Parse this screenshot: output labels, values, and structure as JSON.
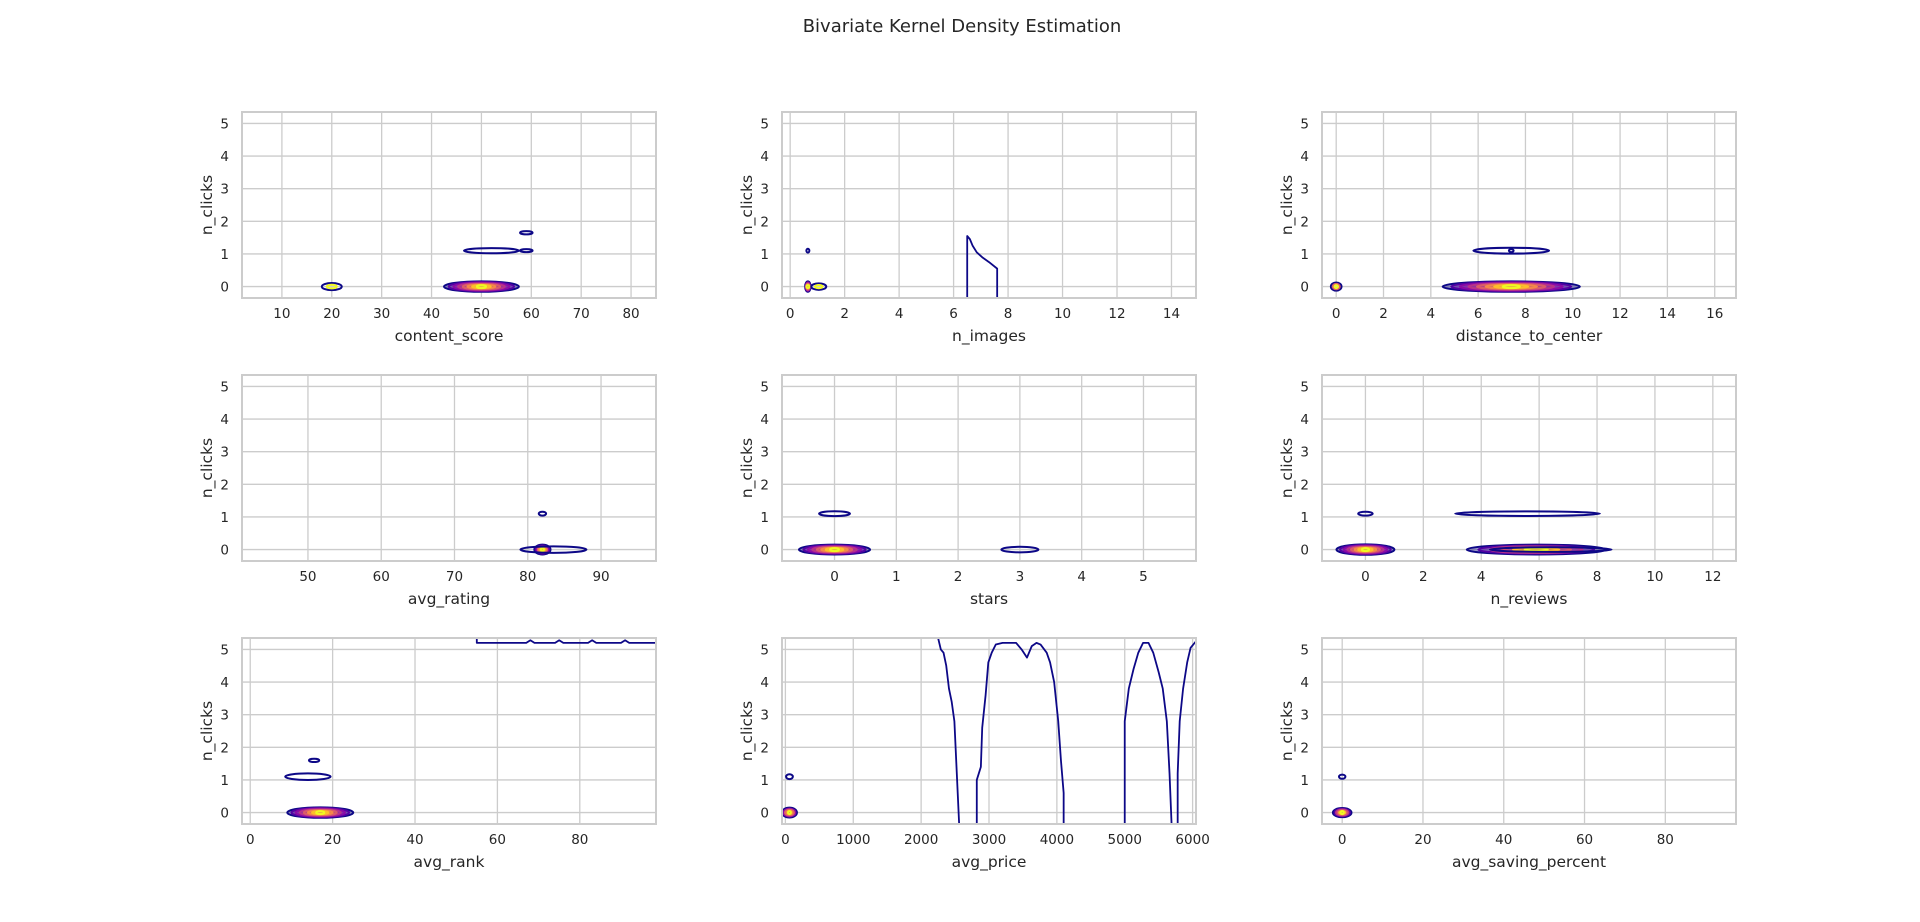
{
  "title": "Bivariate Kernel Density Estimation",
  "colors": {
    "ramp": [
      "#0d0887",
      "#5302a3",
      "#8b0aa5",
      "#b83289",
      "#db5c68",
      "#f48849",
      "#febd2a",
      "#f0f921"
    ],
    "grid": "#cccccc",
    "text": "#262626"
  },
  "chart_data": [
    {
      "type": "kde",
      "xlabel": "content_score",
      "ylabel": "n_clicks",
      "xlim": [
        2,
        85
      ],
      "ylim": [
        -0.35,
        5.35
      ],
      "xticks": [
        10,
        20,
        30,
        40,
        50,
        60,
        70,
        80
      ],
      "yticks": [
        0,
        1,
        2,
        3,
        4,
        5
      ],
      "blobs": [
        {
          "x": 20,
          "y": 0,
          "sx": 4,
          "sy": 0.22,
          "levels": 2
        },
        {
          "x": 50,
          "y": 0,
          "sx": 15,
          "sy": 0.32,
          "levels": 8
        },
        {
          "x": 52,
          "y": 1.1,
          "sx": 11,
          "sy": 0.16,
          "levels": 1
        },
        {
          "x": 59,
          "y": 1.1,
          "sx": 2.5,
          "sy": 0.08,
          "levels": 1
        },
        {
          "x": 59,
          "y": 1.65,
          "sx": 2.5,
          "sy": 0.1,
          "levels": 1
        }
      ],
      "lines": []
    },
    {
      "type": "kde",
      "xlabel": "n_images",
      "ylabel": "n_clicks",
      "xlim": [
        -0.3,
        14.9
      ],
      "ylim": [
        -0.35,
        5.35
      ],
      "xticks": [
        0,
        2,
        4,
        6,
        8,
        10,
        12,
        14
      ],
      "yticks": [
        0,
        1,
        2,
        3,
        4,
        5
      ],
      "blobs": [
        {
          "x": 0.65,
          "y": 0,
          "sx": 0.2,
          "sy": 0.32,
          "levels": 5
        },
        {
          "x": 1.05,
          "y": 0,
          "sx": 0.55,
          "sy": 0.2,
          "levels": 2
        },
        {
          "x": 0.65,
          "y": 1.1,
          "sx": 0.06,
          "sy": 0.12,
          "levels": 1
        }
      ],
      "lines": [
        {
          "points": [
            [
              6.5,
              -0.35
            ],
            [
              6.5,
              1.55
            ],
            [
              6.6,
              1.45
            ],
            [
              6.7,
              1.25
            ],
            [
              6.85,
              1.05
            ],
            [
              7.05,
              0.9
            ],
            [
              7.3,
              0.75
            ],
            [
              7.6,
              0.55
            ],
            [
              7.6,
              -0.35
            ]
          ]
        }
      ]
    },
    {
      "type": "kde",
      "xlabel": "distance_to_center",
      "ylabel": "n_clicks",
      "xlim": [
        -0.6,
        16.9
      ],
      "ylim": [
        -0.35,
        5.35
      ],
      "xticks": [
        0,
        2,
        4,
        6,
        8,
        10,
        12,
        14,
        16
      ],
      "yticks": [
        0,
        1,
        2,
        3,
        4,
        5
      ],
      "blobs": [
        {
          "x": 0,
          "y": 0,
          "sx": 0.45,
          "sy": 0.25,
          "levels": 3
        },
        {
          "x": 7.4,
          "y": 0,
          "sx": 5.8,
          "sy": 0.32,
          "levels": 8
        },
        {
          "x": 7.4,
          "y": 1.1,
          "sx": 3.2,
          "sy": 0.18,
          "levels": 1
        },
        {
          "x": 7.4,
          "y": 1.1,
          "sx": 0.2,
          "sy": 0.06,
          "levels": 1
        }
      ],
      "lines": []
    },
    {
      "type": "kde",
      "xlabel": "avg_rating",
      "ylabel": "n_clicks",
      "xlim": [
        41,
        97.5
      ],
      "ylim": [
        -0.35,
        5.35
      ],
      "xticks": [
        50,
        60,
        70,
        80,
        90
      ],
      "yticks": [
        0,
        1,
        2,
        3,
        4,
        5
      ],
      "blobs": [
        {
          "x": 82,
          "y": 0,
          "sx": 2.2,
          "sy": 0.3,
          "levels": 7
        },
        {
          "x": 83.5,
          "y": 0,
          "sx": 9,
          "sy": 0.2,
          "levels": 1
        },
        {
          "x": 82,
          "y": 1.1,
          "sx": 1,
          "sy": 0.12,
          "levels": 1
        }
      ],
      "lines": []
    },
    {
      "type": "kde",
      "xlabel": "stars",
      "ylabel": "n_clicks",
      "xlim": [
        -0.85,
        5.85
      ],
      "ylim": [
        -0.35,
        5.35
      ],
      "xticks": [
        0,
        1,
        2,
        3,
        4,
        5
      ],
      "yticks": [
        0,
        1,
        2,
        3,
        4,
        5
      ],
      "blobs": [
        {
          "x": 0,
          "y": 0,
          "sx": 1.15,
          "sy": 0.3,
          "levels": 8
        },
        {
          "x": 0,
          "y": 1.1,
          "sx": 0.5,
          "sy": 0.15,
          "levels": 1
        },
        {
          "x": 3,
          "y": 0,
          "sx": 0.6,
          "sy": 0.17,
          "levels": 1
        }
      ],
      "lines": []
    },
    {
      "type": "kde",
      "xlabel": "n_reviews",
      "ylabel": "n_clicks",
      "xlim": [
        -1.5,
        12.8
      ],
      "ylim": [
        -0.35,
        5.35
      ],
      "xticks": [
        0,
        2,
        4,
        6,
        8,
        10,
        12
      ],
      "yticks": [
        0,
        1,
        2,
        3,
        4,
        5
      ],
      "blobs": [
        {
          "x": 0,
          "y": 0,
          "sx": 2,
          "sy": 0.32,
          "levels": 8
        },
        {
          "x": 0,
          "y": 1.1,
          "sx": 0.5,
          "sy": 0.12,
          "levels": 1
        },
        {
          "x": 5.9,
          "y": 0,
          "sx": 4.8,
          "sy": 0.3,
          "levels": 6
        },
        {
          "x": 6.4,
          "y": 0,
          "sx": 4.2,
          "sy": 0.14,
          "levels": 1
        },
        {
          "x": 5.6,
          "y": 1.1,
          "sx": 5,
          "sy": 0.14,
          "levels": 1
        }
      ],
      "lines": []
    },
    {
      "type": "kde",
      "xlabel": "avg_rank",
      "ylabel": "n_clicks",
      "xlim": [
        -2,
        98.5
      ],
      "ylim": [
        -0.35,
        5.35
      ],
      "xticks": [
        0,
        20,
        40,
        60,
        80
      ],
      "yticks": [
        0,
        1,
        2,
        3,
        4,
        5
      ],
      "blobs": [
        {
          "x": 17,
          "y": 0,
          "sx": 16,
          "sy": 0.32,
          "levels": 8
        },
        {
          "x": 14,
          "y": 1.1,
          "sx": 11,
          "sy": 0.2,
          "levels": 1
        },
        {
          "x": 15.5,
          "y": 1.6,
          "sx": 2.5,
          "sy": 0.1,
          "levels": 1
        }
      ],
      "lines": [
        {
          "points": [
            [
              55,
              5.35
            ],
            [
              55,
              5.2
            ],
            [
              67,
              5.2
            ],
            [
              68,
              5.28
            ],
            [
              69,
              5.2
            ],
            [
              74,
              5.2
            ],
            [
              75,
              5.28
            ],
            [
              76,
              5.2
            ],
            [
              82,
              5.2
            ],
            [
              83,
              5.28
            ],
            [
              84,
              5.2
            ],
            [
              90,
              5.2
            ],
            [
              91,
              5.28
            ],
            [
              92,
              5.2
            ],
            [
              98.5,
              5.2
            ]
          ]
        }
      ]
    },
    {
      "type": "kde",
      "xlabel": "avg_price",
      "ylabel": "n_clicks",
      "xlim": [
        -50,
        6050
      ],
      "ylim": [
        -0.35,
        5.35
      ],
      "xticks": [
        0,
        1000,
        2000,
        3000,
        4000,
        5000,
        6000
      ],
      "yticks": [
        0,
        1,
        2,
        3,
        4,
        5
      ],
      "blobs": [
        {
          "x": 60,
          "y": 0,
          "sx": 220,
          "sy": 0.3,
          "levels": 5
        },
        {
          "x": 60,
          "y": 1.1,
          "sx": 100,
          "sy": 0.15,
          "levels": 1
        }
      ],
      "lines": [
        {
          "points": [
            [
              2250,
              5.35
            ],
            [
              2290,
              5.0
            ],
            [
              2330,
              4.9
            ],
            [
              2370,
              4.5
            ],
            [
              2410,
              3.8
            ],
            [
              2450,
              3.4
            ],
            [
              2490,
              2.8
            ],
            [
              2530,
              1.0
            ],
            [
              2560,
              -0.35
            ]
          ]
        },
        {
          "points": [
            [
              2820,
              -0.35
            ],
            [
              2820,
              1.0
            ],
            [
              2880,
              1.4
            ],
            [
              2900,
              2.6
            ],
            [
              2950,
              3.6
            ],
            [
              2990,
              4.6
            ],
            [
              3040,
              4.9
            ],
            [
              3100,
              5.15
            ],
            [
              3200,
              5.2
            ],
            [
              3400,
              5.2
            ],
            [
              3480,
              5.0
            ],
            [
              3560,
              4.75
            ],
            [
              3630,
              5.1
            ],
            [
              3700,
              5.2
            ],
            [
              3760,
              5.15
            ],
            [
              3850,
              4.9
            ],
            [
              3900,
              4.6
            ],
            [
              3960,
              4.0
            ],
            [
              4020,
              2.8
            ],
            [
              4060,
              1.6
            ],
            [
              4100,
              0.6
            ],
            [
              4100,
              -0.35
            ]
          ]
        },
        {
          "points": [
            [
              5000,
              -0.35
            ],
            [
              5000,
              2.8
            ],
            [
              5060,
              3.8
            ],
            [
              5130,
              4.4
            ],
            [
              5200,
              4.9
            ],
            [
              5270,
              5.2
            ],
            [
              5350,
              5.2
            ],
            [
              5420,
              4.9
            ],
            [
              5500,
              4.3
            ],
            [
              5560,
              3.8
            ],
            [
              5620,
              2.8
            ],
            [
              5660,
              1.2
            ],
            [
              5690,
              -0.35
            ]
          ]
        },
        {
          "points": [
            [
              5780,
              -0.35
            ],
            [
              5780,
              1.2
            ],
            [
              5810,
              2.8
            ],
            [
              5860,
              3.8
            ],
            [
              5920,
              4.6
            ],
            [
              5970,
              5.05
            ],
            [
              6050,
              5.25
            ]
          ]
        }
      ]
    },
    {
      "type": "kde",
      "xlabel": "avg_saving_percent",
      "ylabel": "n_clicks",
      "xlim": [
        -5,
        97.5
      ],
      "ylim": [
        -0.35,
        5.35
      ],
      "xticks": [
        0,
        20,
        40,
        60,
        80
      ],
      "yticks": [
        0,
        1,
        2,
        3,
        4,
        5
      ],
      "blobs": [
        {
          "x": 0,
          "y": 0,
          "sx": 4.6,
          "sy": 0.28,
          "levels": 6
        },
        {
          "x": 0,
          "y": 1.1,
          "sx": 1.6,
          "sy": 0.13,
          "levels": 1
        }
      ],
      "lines": []
    }
  ]
}
